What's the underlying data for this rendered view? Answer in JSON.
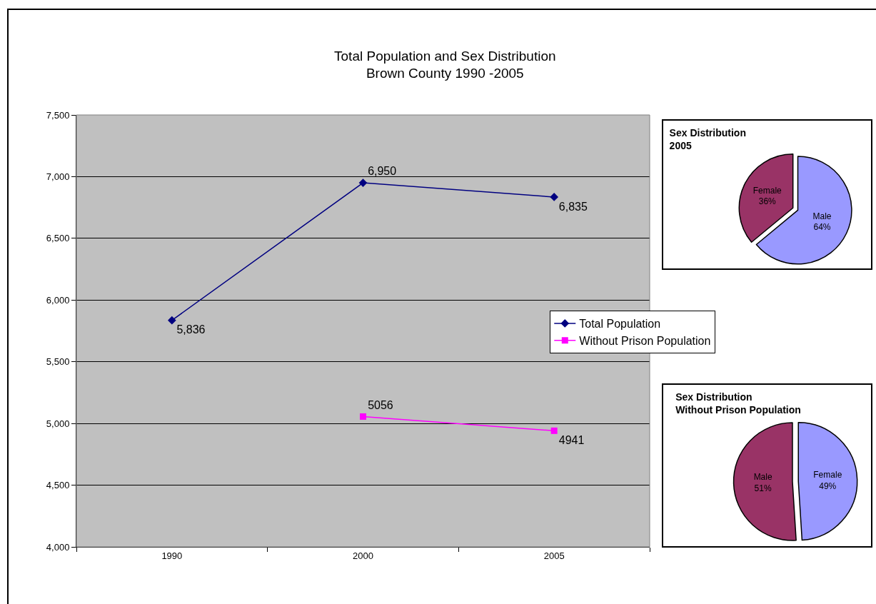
{
  "chart_data": [
    {
      "type": "line",
      "title": "Total Population and Sex Distribution\nBrown County 1990 -2005",
      "categories": [
        "1990",
        "2000",
        "2005"
      ],
      "series": [
        {
          "name": "Total Population",
          "color": "#000080",
          "marker": "diamond",
          "values": [
            5836,
            6950,
            6835
          ],
          "value_labels": [
            "5,836",
            "6,950",
            "6,835"
          ]
        },
        {
          "name": "Without Prison Population",
          "color": "#ff00ff",
          "marker": "square",
          "values": [
            null,
            5056,
            4941
          ],
          "value_labels": [
            null,
            "5056",
            "4941"
          ]
        }
      ],
      "ylim": [
        4000,
        7500
      ],
      "yticks": [
        {
          "value": 4000,
          "label": "4,000"
        },
        {
          "value": 4500,
          "label": "4,500"
        },
        {
          "value": 5000,
          "label": "5,000"
        },
        {
          "value": 5500,
          "label": "5,500"
        },
        {
          "value": 6000,
          "label": "6,000"
        },
        {
          "value": 6500,
          "label": "6,500"
        },
        {
          "value": 7000,
          "label": "7,000"
        },
        {
          "value": 7500,
          "label": "7,500"
        }
      ],
      "grid": "y",
      "legend": "right",
      "line_style": "solid"
    },
    {
      "type": "pie",
      "title": "Sex Distribution\n2005",
      "categories": [
        "Male",
        "Female"
      ],
      "values": [
        64,
        36
      ],
      "colors": [
        "#9999ff",
        "#993366"
      ],
      "value_labels": [
        "64%",
        "36%"
      ]
    },
    {
      "type": "pie",
      "title": "Sex Distribution\nWithout Prison Population",
      "categories": [
        "Female",
        "Male"
      ],
      "values": [
        49,
        51
      ],
      "colors": [
        "#9999ff",
        "#993366"
      ],
      "value_labels": [
        "49%",
        "51%"
      ]
    }
  ]
}
